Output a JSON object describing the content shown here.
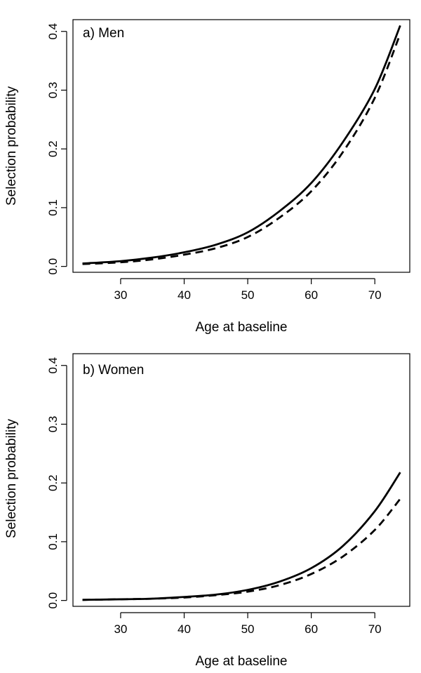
{
  "chart_data": [
    {
      "type": "line",
      "title": "a) Men",
      "xlabel": "Age at baseline",
      "ylabel": "Selection probability",
      "xlim": [
        22.5,
        75.5
      ],
      "ylim": [
        -0.01,
        0.42
      ],
      "xticks": [
        "30",
        "40",
        "50",
        "60",
        "70"
      ],
      "yticks": [
        "0.0",
        "0.1",
        "0.2",
        "0.3",
        "0.4"
      ],
      "x": [
        24,
        30,
        35,
        40,
        45,
        50,
        55,
        60,
        65,
        70,
        74
      ],
      "series": [
        {
          "name": "solid",
          "style": "solid",
          "values": [
            0.005,
            0.009,
            0.015,
            0.024,
            0.037,
            0.058,
            0.094,
            0.142,
            0.212,
            0.302,
            0.41
          ]
        },
        {
          "name": "dashed",
          "style": "dashed",
          "values": [
            0.004,
            0.007,
            0.012,
            0.02,
            0.031,
            0.05,
            0.083,
            0.128,
            0.195,
            0.287,
            0.396
          ]
        }
      ]
    },
    {
      "type": "line",
      "title": "b) Women",
      "xlabel": "Age at baseline",
      "ylabel": "Selection probability",
      "xlim": [
        22.5,
        75.5
      ],
      "ylim": [
        -0.01,
        0.42
      ],
      "xticks": [
        "30",
        "40",
        "50",
        "60",
        "70"
      ],
      "yticks": [
        "0.0",
        "0.1",
        "0.2",
        "0.3",
        "0.4"
      ],
      "x": [
        24,
        30,
        35,
        40,
        45,
        50,
        55,
        60,
        65,
        70,
        74
      ],
      "series": [
        {
          "name": "solid",
          "style": "solid",
          "values": [
            0.001,
            0.002,
            0.003,
            0.006,
            0.01,
            0.018,
            0.032,
            0.055,
            0.093,
            0.152,
            0.218
          ]
        },
        {
          "name": "dashed",
          "style": "dashed",
          "values": [
            0.001,
            0.002,
            0.003,
            0.005,
            0.009,
            0.015,
            0.026,
            0.045,
            0.075,
            0.12,
            0.173
          ]
        }
      ]
    }
  ]
}
